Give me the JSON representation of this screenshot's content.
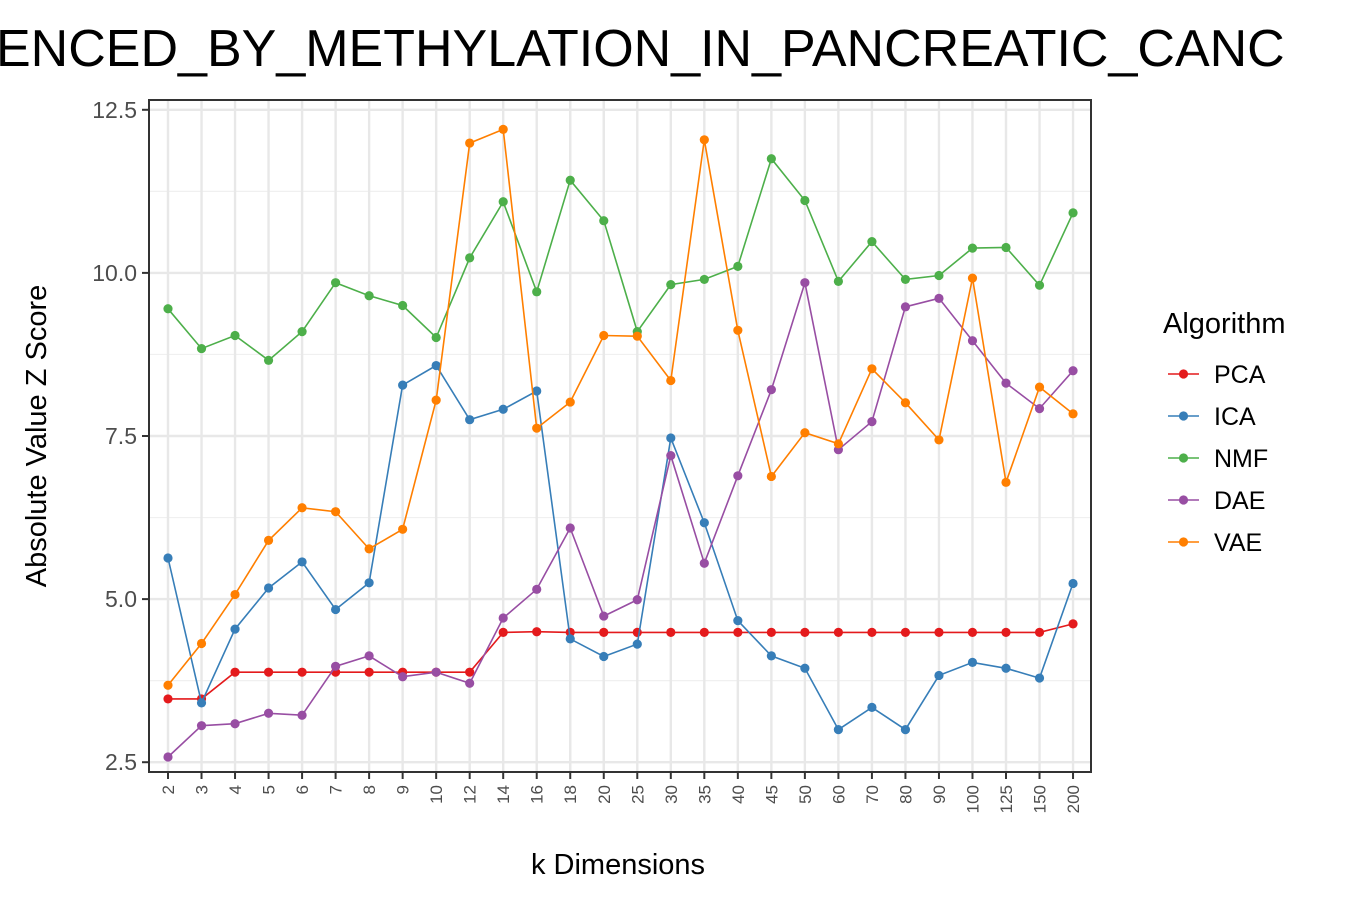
{
  "chart_data": {
    "type": "line",
    "title": "ENCED_BY_METHYLATION_IN_PANCREATIC_CANC",
    "xlabel": "k Dimensions",
    "ylabel": "Absolute Value Z Score",
    "categories": [
      "2",
      "3",
      "4",
      "5",
      "6",
      "7",
      "8",
      "9",
      "10",
      "12",
      "14",
      "16",
      "18",
      "20",
      "25",
      "30",
      "35",
      "40",
      "45",
      "50",
      "60",
      "70",
      "80",
      "90",
      "100",
      "125",
      "150",
      "200"
    ],
    "ylim": [
      2.35,
      12.65
    ],
    "yticks": [
      2.5,
      5.0,
      7.5,
      10.0,
      12.5
    ],
    "ytick_labels": [
      "2.5",
      "5.0",
      "7.5",
      "10.0",
      "12.5"
    ],
    "grid": true,
    "legend": {
      "title": "Algorithm",
      "position": "right"
    },
    "series": [
      {
        "name": "PCA",
        "color": "#e41a1c",
        "values": [
          3.47,
          3.47,
          3.88,
          3.88,
          3.88,
          3.88,
          3.88,
          3.88,
          3.88,
          3.88,
          4.49,
          4.5,
          4.49,
          4.49,
          4.49,
          4.49,
          4.49,
          4.49,
          4.49,
          4.49,
          4.49,
          4.49,
          4.49,
          4.49,
          4.49,
          4.49,
          4.49,
          4.62
        ]
      },
      {
        "name": "ICA",
        "color": "#377eb8",
        "values": [
          5.63,
          3.41,
          4.54,
          5.17,
          5.57,
          4.84,
          5.25,
          8.28,
          8.58,
          7.75,
          7.91,
          8.19,
          4.39,
          4.12,
          4.31,
          7.47,
          6.17,
          4.67,
          4.13,
          3.94,
          3.0,
          3.34,
          3.0,
          3.83,
          4.03,
          3.94,
          3.79,
          5.24
        ]
      },
      {
        "name": "NMF",
        "color": "#4daf4a",
        "values": [
          9.45,
          8.84,
          9.04,
          8.66,
          9.1,
          9.85,
          9.65,
          9.5,
          9.01,
          10.23,
          11.09,
          9.71,
          11.42,
          10.8,
          9.1,
          9.82,
          9.9,
          10.1,
          11.75,
          11.11,
          9.87,
          10.48,
          9.9,
          9.96,
          10.38,
          10.39,
          9.81,
          10.92
        ]
      },
      {
        "name": "DAE",
        "color": "#984ea3",
        "values": [
          2.58,
          3.06,
          3.09,
          3.25,
          3.22,
          3.97,
          4.13,
          3.81,
          3.88,
          3.71,
          4.71,
          5.15,
          6.09,
          4.74,
          4.99,
          7.2,
          5.55,
          6.89,
          8.21,
          9.85,
          7.29,
          7.72,
          9.48,
          9.61,
          8.96,
          8.31,
          7.92,
          8.5
        ]
      },
      {
        "name": "VAE",
        "color": "#ff7f00",
        "values": [
          3.68,
          4.32,
          5.07,
          5.9,
          6.4,
          6.34,
          5.77,
          6.07,
          8.05,
          11.99,
          12.2,
          7.62,
          8.02,
          9.04,
          9.03,
          8.35,
          12.04,
          9.12,
          6.88,
          7.55,
          7.38,
          8.53,
          8.01,
          7.44,
          9.92,
          6.79,
          8.25,
          7.84
        ]
      }
    ]
  }
}
